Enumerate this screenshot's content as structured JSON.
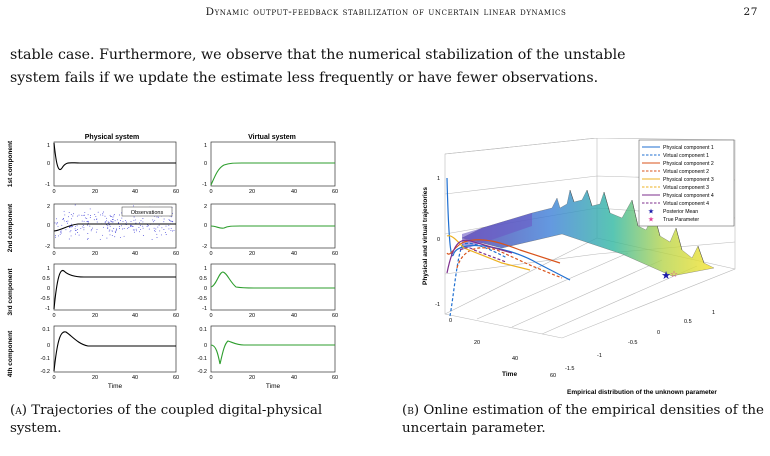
{
  "header": {
    "title": "Dynamic output-feedback stabilization of uncertain linear dynamics",
    "page_number": "27"
  },
  "paragraph": {
    "line1": "stable case. Furthermore, we observe that the numerical stabilization of the unstable",
    "line2": "system fails if we update the estimate less frequently or have fewer observations."
  },
  "figure_a": {
    "col_titles": [
      "Physical system",
      "Virtual system"
    ],
    "row_labels": [
      "1st component",
      "2nd component",
      "3rd component",
      "4th component"
    ],
    "xlabel": "Time",
    "x_ticks": [
      "0",
      "20",
      "40",
      "60"
    ],
    "y_ticks": [
      [
        "1",
        "0",
        "-1"
      ],
      [
        "2",
        "0",
        "-2"
      ],
      [
        "1",
        "0.5",
        "0",
        "-0.5",
        "-1"
      ],
      [
        "0.1",
        "0",
        "-0.1",
        "-0.2"
      ]
    ],
    "legend": "Observations",
    "line_colors": {
      "physical": "#000000",
      "virtual": "#2e9e2e",
      "observations": "#3b3bd6"
    }
  },
  "figure_b": {
    "zlabel": "Physical and virtual trajectories",
    "xlabel": "Time",
    "ylabel": "Empirical distribution of the unknown parameter",
    "z_ticks": [
      "1",
      "0",
      "-1"
    ],
    "time_ticks": [
      "0",
      "20",
      "40",
      "60"
    ],
    "param_ticks": [
      "-1.5",
      "-1",
      "-0.5",
      "0",
      "0.5",
      "1"
    ],
    "legend": [
      {
        "label": "Physical component 1",
        "color": "#1f6fd1",
        "dash": false
      },
      {
        "label": "Virtual component 1",
        "color": "#1f6fd1",
        "dash": true
      },
      {
        "label": "Physical component 2",
        "color": "#d8531b",
        "dash": false
      },
      {
        "label": "Virtual component 2",
        "color": "#d8531b",
        "dash": true
      },
      {
        "label": "Physical component 3",
        "color": "#edb120",
        "dash": false
      },
      {
        "label": "Virtual component 3",
        "color": "#edb120",
        "dash": true
      },
      {
        "label": "Physical component 4",
        "color": "#7e2f8e",
        "dash": false
      },
      {
        "label": "Virtual component 4",
        "color": "#7e2f8e",
        "dash": true
      },
      {
        "label": "Posterior Mean",
        "color": "#1a1aa8",
        "marker": "star"
      },
      {
        "label": "True Parameter",
        "color": "#e0409a",
        "marker": "star"
      }
    ]
  },
  "captions": {
    "a_label": "(a)",
    "a_text": "Trajectories of the coupled digital-physical system.",
    "b_label": "(b)",
    "b_text": "Online estimation of the empirical densities of the uncertain parameter."
  }
}
